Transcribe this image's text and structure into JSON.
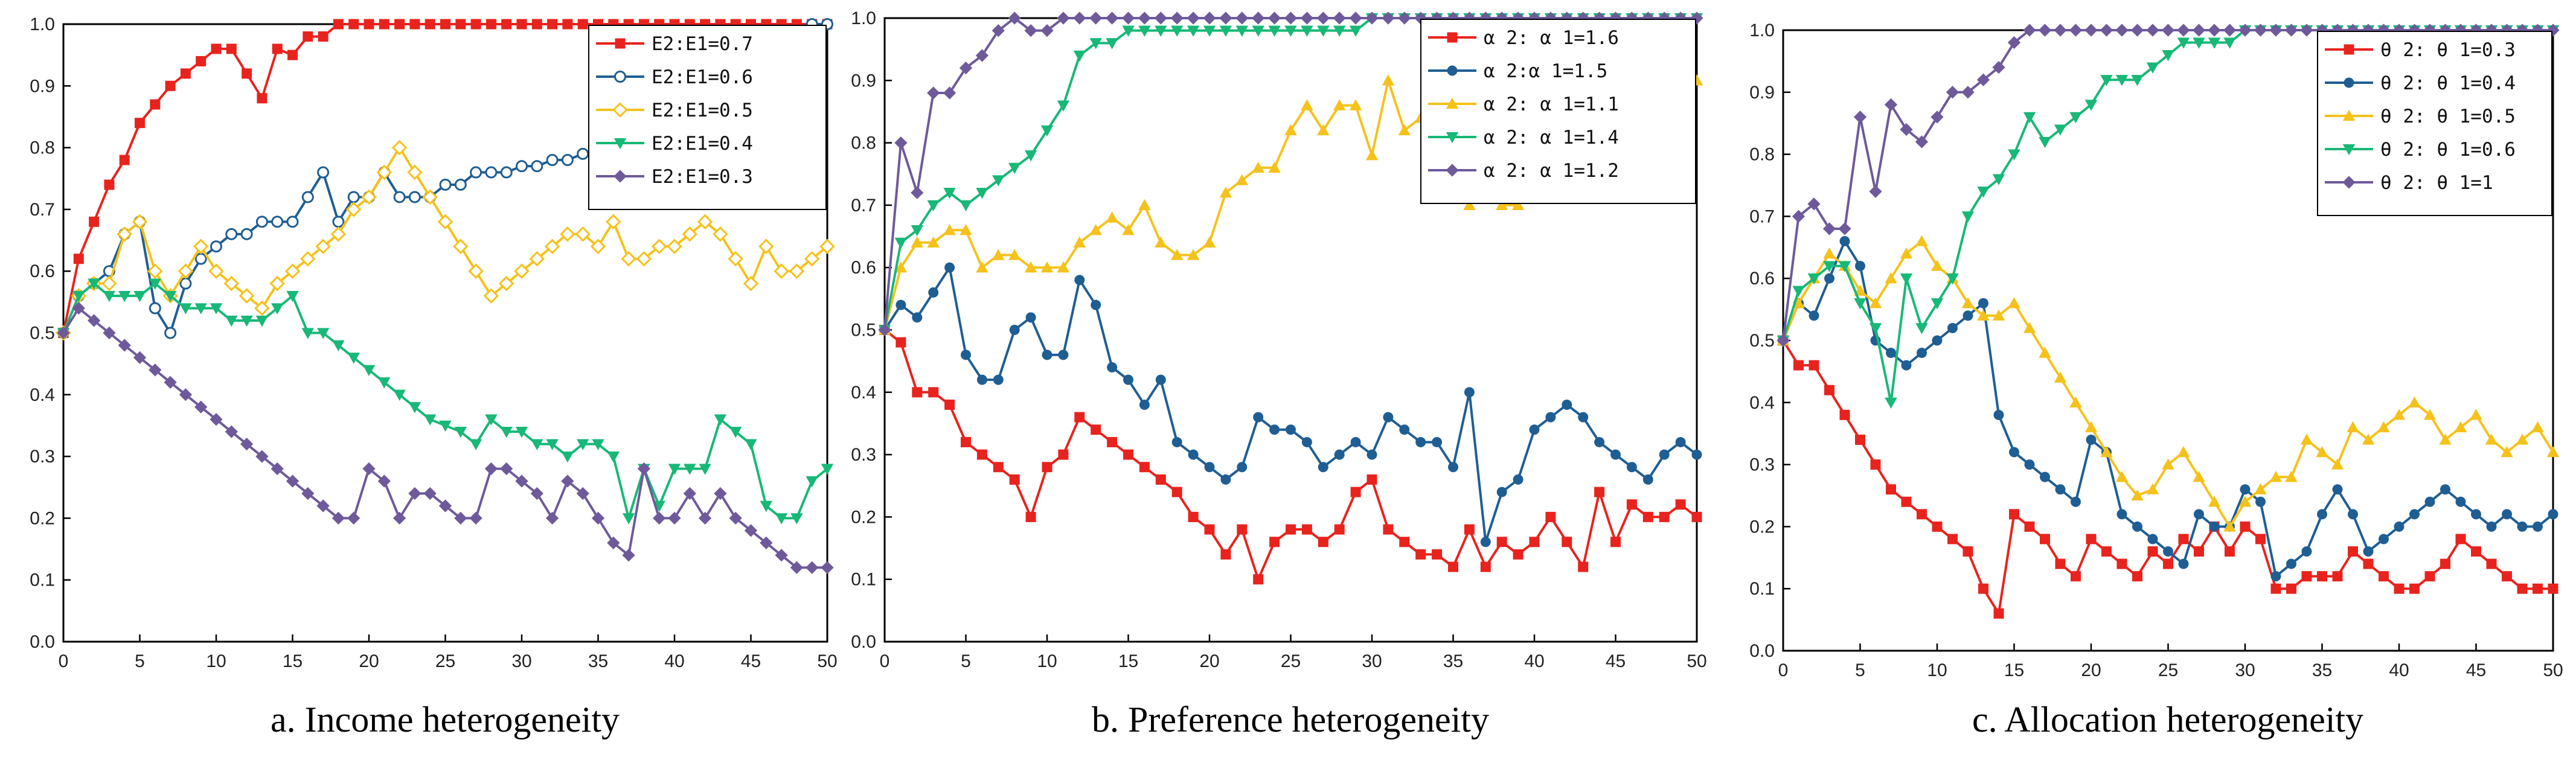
{
  "chart_data": [
    {
      "type": "line",
      "caption": "a.  Income heterogeneity",
      "xlim": [
        0,
        50
      ],
      "ylim": [
        0,
        1
      ],
      "xticks": [
        "0",
        "5",
        "10",
        "15",
        "20",
        "25",
        "30",
        "35",
        "40",
        "45",
        "50"
      ],
      "yticks": [
        "0.0",
        "0.1",
        "0.2",
        "0.3",
        "0.4",
        "0.5",
        "0.6",
        "0.7",
        "0.8",
        "0.9",
        "1.0"
      ],
      "grid": false,
      "legend_position": "top-right",
      "series": [
        {
          "name": "E2:E1=0.7",
          "color": "#e8231e",
          "marker": "square",
          "values": [
            0.5,
            0.62,
            0.68,
            0.74,
            0.78,
            0.84,
            0.87,
            0.9,
            0.92,
            0.94,
            0.96,
            0.96,
            0.92,
            0.88,
            0.96,
            0.95,
            0.98,
            0.98,
            1,
            1,
            1,
            1,
            1,
            1,
            1,
            1,
            1,
            1,
            1,
            1,
            1,
            1,
            1,
            1,
            1,
            1,
            1,
            1,
            1,
            1,
            1,
            1,
            1,
            1,
            1,
            1,
            1,
            1,
            1,
            1,
            1
          ]
        },
        {
          "name": "E2:E1=0.6",
          "color": "#1f5e93",
          "marker": "circle-open",
          "values": [
            0.5,
            0.56,
            0.58,
            0.6,
            0.66,
            0.68,
            0.54,
            0.5,
            0.58,
            0.62,
            0.64,
            0.66,
            0.66,
            0.68,
            0.68,
            0.68,
            0.72,
            0.76,
            0.68,
            0.72,
            0.72,
            0.76,
            0.72,
            0.72,
            0.72,
            0.74,
            0.74,
            0.76,
            0.76,
            0.76,
            0.77,
            0.77,
            0.78,
            0.78,
            0.79,
            0.8,
            0.8,
            0.76,
            0.76,
            0.82,
            0.82,
            0.82,
            0.84,
            0.84,
            0.84,
            0.86,
            0.88,
            0.9,
            0.96,
            1,
            1
          ]
        },
        {
          "name": "E2:E1=0.5",
          "color": "#f5c21b",
          "marker": "diamond-open",
          "values": [
            0.5,
            0.56,
            0.58,
            0.58,
            0.66,
            0.68,
            0.6,
            0.56,
            0.6,
            0.64,
            0.6,
            0.58,
            0.56,
            0.54,
            0.58,
            0.6,
            0.62,
            0.64,
            0.66,
            0.7,
            0.72,
            0.76,
            0.8,
            0.76,
            0.72,
            0.68,
            0.64,
            0.6,
            0.56,
            0.58,
            0.6,
            0.62,
            0.64,
            0.66,
            0.66,
            0.64,
            0.68,
            0.62,
            0.62,
            0.64,
            0.64,
            0.66,
            0.68,
            0.66,
            0.62,
            0.58,
            0.64,
            0.6,
            0.6,
            0.62,
            0.64
          ]
        },
        {
          "name": "E2:E1=0.4",
          "color": "#18b877",
          "marker": "triangle-down",
          "values": [
            0.5,
            0.56,
            0.58,
            0.56,
            0.56,
            0.56,
            0.58,
            0.56,
            0.54,
            0.54,
            0.54,
            0.52,
            0.52,
            0.52,
            0.54,
            0.56,
            0.5,
            0.5,
            0.48,
            0.46,
            0.44,
            0.42,
            0.4,
            0.38,
            0.36,
            0.35,
            0.34,
            0.32,
            0.36,
            0.34,
            0.34,
            0.32,
            0.32,
            0.3,
            0.32,
            0.32,
            0.3,
            0.2,
            0.28,
            0.22,
            0.28,
            0.28,
            0.28,
            0.36,
            0.34,
            0.32,
            0.22,
            0.2,
            0.2,
            0.26,
            0.28
          ]
        },
        {
          "name": "E2:E1=0.3",
          "color": "#6e5a9b",
          "marker": "diamond",
          "values": [
            0.5,
            0.54,
            0.52,
            0.5,
            0.48,
            0.46,
            0.44,
            0.42,
            0.4,
            0.38,
            0.36,
            0.34,
            0.32,
            0.3,
            0.28,
            0.26,
            0.24,
            0.22,
            0.2,
            0.2,
            0.28,
            0.26,
            0.2,
            0.24,
            0.24,
            0.22,
            0.2,
            0.2,
            0.28,
            0.28,
            0.26,
            0.24,
            0.2,
            0.26,
            0.24,
            0.2,
            0.16,
            0.14,
            0.28,
            0.2,
            0.2,
            0.24,
            0.2,
            0.24,
            0.2,
            0.18,
            0.16,
            0.14,
            0.12,
            0.12,
            0.12
          ]
        }
      ]
    },
    {
      "type": "line",
      "caption": "b.  Preference heterogeneity",
      "xlim": [
        0,
        50
      ],
      "ylim": [
        0,
        1
      ],
      "xticks": [
        "0",
        "5",
        "10",
        "15",
        "20",
        "25",
        "30",
        "35",
        "40",
        "45",
        "50"
      ],
      "yticks": [
        "0.0",
        "0.1",
        "0.2",
        "0.3",
        "0.4",
        "0.5",
        "0.6",
        "0.7",
        "0.8",
        "0.9",
        "1.0"
      ],
      "grid": false,
      "legend_position": "top-right",
      "series": [
        {
          "name": "α 2: α 1=1.6",
          "color": "#e8231e",
          "marker": "square",
          "values": [
            0.5,
            0.48,
            0.4,
            0.4,
            0.38,
            0.32,
            0.3,
            0.28,
            0.26,
            0.2,
            0.28,
            0.3,
            0.36,
            0.34,
            0.32,
            0.3,
            0.28,
            0.26,
            0.24,
            0.2,
            0.18,
            0.14,
            0.18,
            0.1,
            0.16,
            0.18,
            0.18,
            0.16,
            0.18,
            0.24,
            0.26,
            0.18,
            0.16,
            0.14,
            0.14,
            0.12,
            0.18,
            0.12,
            0.16,
            0.14,
            0.16,
            0.2,
            0.16,
            0.12,
            0.24,
            0.16,
            0.22,
            0.2,
            0.2,
            0.22,
            0.2
          ]
        },
        {
          "name": "α 2:α 1=1.5",
          "color": "#1f5e93",
          "marker": "circle",
          "values": [
            0.5,
            0.54,
            0.52,
            0.56,
            0.6,
            0.46,
            0.42,
            0.42,
            0.5,
            0.52,
            0.46,
            0.46,
            0.58,
            0.54,
            0.44,
            0.42,
            0.38,
            0.42,
            0.32,
            0.3,
            0.28,
            0.26,
            0.28,
            0.36,
            0.34,
            0.34,
            0.32,
            0.28,
            0.3,
            0.32,
            0.3,
            0.36,
            0.34,
            0.32,
            0.32,
            0.28,
            0.4,
            0.16,
            0.24,
            0.26,
            0.34,
            0.36,
            0.38,
            0.36,
            0.32,
            0.3,
            0.28,
            0.26,
            0.3,
            0.32,
            0.3
          ]
        },
        {
          "name": "α 2: α 1=1.1",
          "color": "#f5c21b",
          "marker": "triangle-up",
          "values": [
            0.5,
            0.6,
            0.64,
            0.64,
            0.66,
            0.66,
            0.6,
            0.62,
            0.62,
            0.6,
            0.6,
            0.6,
            0.64,
            0.66,
            0.68,
            0.66,
            0.7,
            0.64,
            0.62,
            0.62,
            0.64,
            0.72,
            0.74,
            0.76,
            0.76,
            0.82,
            0.86,
            0.82,
            0.86,
            0.86,
            0.78,
            0.9,
            0.82,
            0.84,
            0.76,
            0.72,
            0.7,
            0.72,
            0.7,
            0.7,
            0.74,
            0.76,
            0.78,
            0.76,
            0.8,
            0.82,
            0.84,
            0.86,
            0.9,
            0.9,
            0.9
          ]
        },
        {
          "name": "α 2: α 1=1.4",
          "color": "#18b877",
          "marker": "triangle-down",
          "values": [
            0.5,
            0.64,
            0.66,
            0.7,
            0.72,
            0.7,
            0.72,
            0.74,
            0.76,
            0.78,
            0.82,
            0.86,
            0.94,
            0.96,
            0.96,
            0.98,
            0.98,
            0.98,
            0.98,
            0.98,
            0.98,
            0.98,
            0.98,
            0.98,
            0.98,
            0.98,
            0.98,
            0.98,
            0.98,
            0.98,
            1,
            1,
            1,
            1,
            1,
            1,
            1,
            1,
            1,
            1,
            1,
            1,
            1,
            1,
            1,
            1,
            1,
            1,
            1,
            1,
            1
          ]
        },
        {
          "name": "α 2: α 1=1.2",
          "color": "#6e5a9b",
          "marker": "diamond",
          "values": [
            0.5,
            0.8,
            0.72,
            0.88,
            0.88,
            0.92,
            0.94,
            0.98,
            1,
            0.98,
            0.98,
            1,
            1,
            1,
            1,
            1,
            1,
            1,
            1,
            1,
            1,
            1,
            1,
            1,
            1,
            1,
            1,
            1,
            1,
            1,
            1,
            1,
            1,
            1,
            1,
            1,
            1,
            1,
            1,
            1,
            1,
            1,
            1,
            1,
            1,
            1,
            1,
            1,
            1,
            1,
            1
          ]
        }
      ]
    },
    {
      "type": "line",
      "caption": "c.  Allocation heterogeneity",
      "xlim": [
        0,
        50
      ],
      "ylim": [
        0,
        1
      ],
      "xticks": [
        "0",
        "5",
        "10",
        "15",
        "20",
        "25",
        "30",
        "35",
        "40",
        "45",
        "50"
      ],
      "yticks": [
        "0.0",
        "0.1",
        "0.2",
        "0.3",
        "0.4",
        "0.5",
        "0.6",
        "0.7",
        "0.8",
        "0.9",
        "1.0"
      ],
      "grid": false,
      "legend_position": "top-right",
      "series": [
        {
          "name": "θ 2: θ 1=0.3",
          "color": "#e8231e",
          "marker": "square",
          "values": [
            0.5,
            0.46,
            0.46,
            0.42,
            0.38,
            0.34,
            0.3,
            0.26,
            0.24,
            0.22,
            0.2,
            0.18,
            0.16,
            0.1,
            0.06,
            0.22,
            0.2,
            0.18,
            0.14,
            0.12,
            0.18,
            0.16,
            0.14,
            0.12,
            0.16,
            0.14,
            0.18,
            0.16,
            0.2,
            0.16,
            0.2,
            0.18,
            0.1,
            0.1,
            0.12,
            0.12,
            0.12,
            0.16,
            0.14,
            0.12,
            0.1,
            0.1,
            0.12,
            0.14,
            0.18,
            0.16,
            0.14,
            0.12,
            0.1,
            0.1,
            0.1
          ]
        },
        {
          "name": "θ 2: θ 1=0.4",
          "color": "#1f5e93",
          "marker": "circle",
          "values": [
            0.5,
            0.56,
            0.54,
            0.6,
            0.66,
            0.62,
            0.5,
            0.48,
            0.46,
            0.48,
            0.5,
            0.52,
            0.54,
            0.56,
            0.38,
            0.32,
            0.3,
            0.28,
            0.26,
            0.24,
            0.34,
            0.32,
            0.22,
            0.2,
            0.18,
            0.16,
            0.14,
            0.22,
            0.2,
            0.2,
            0.26,
            0.24,
            0.12,
            0.14,
            0.16,
            0.22,
            0.26,
            0.22,
            0.16,
            0.18,
            0.2,
            0.22,
            0.24,
            0.26,
            0.24,
            0.22,
            0.2,
            0.22,
            0.2,
            0.2,
            0.22
          ]
        },
        {
          "name": "θ 2: θ 1=0.5",
          "color": "#f5c21b",
          "marker": "triangle-up",
          "values": [
            0.5,
            0.56,
            0.6,
            0.64,
            0.62,
            0.58,
            0.56,
            0.6,
            0.64,
            0.66,
            0.62,
            0.6,
            0.56,
            0.54,
            0.54,
            0.56,
            0.52,
            0.48,
            0.44,
            0.4,
            0.36,
            0.32,
            0.28,
            0.25,
            0.26,
            0.3,
            0.32,
            0.28,
            0.24,
            0.2,
            0.24,
            0.26,
            0.28,
            0.28,
            0.34,
            0.32,
            0.3,
            0.36,
            0.34,
            0.36,
            0.38,
            0.4,
            0.38,
            0.34,
            0.36,
            0.38,
            0.34,
            0.32,
            0.34,
            0.36,
            0.32
          ]
        },
        {
          "name": "θ 2: θ 1=0.6",
          "color": "#18b877",
          "marker": "triangle-down",
          "values": [
            0.5,
            0.58,
            0.6,
            0.62,
            0.62,
            0.56,
            0.52,
            0.4,
            0.6,
            0.52,
            0.56,
            0.6,
            0.7,
            0.74,
            0.76,
            0.8,
            0.86,
            0.82,
            0.84,
            0.86,
            0.88,
            0.92,
            0.92,
            0.92,
            0.94,
            0.96,
            0.98,
            0.98,
            0.98,
            0.98,
            1,
            1,
            1,
            1,
            1,
            1,
            1,
            1,
            1,
            1,
            1,
            1,
            1,
            1,
            1,
            1,
            1,
            1,
            1,
            1,
            1
          ]
        },
        {
          "name": "θ 2: θ 1=1",
          "color": "#6e5a9b",
          "marker": "diamond",
          "values": [
            0.5,
            0.7,
            0.72,
            0.68,
            0.68,
            0.86,
            0.74,
            0.88,
            0.84,
            0.82,
            0.86,
            0.9,
            0.9,
            0.92,
            0.94,
            0.98,
            1,
            1,
            1,
            1,
            1,
            1,
            1,
            1,
            1,
            1,
            1,
            1,
            1,
            1,
            1,
            1,
            1,
            1,
            1,
            1,
            1,
            1,
            1,
            1,
            1,
            1,
            1,
            1,
            1,
            1,
            1,
            1,
            1,
            1,
            1
          ]
        }
      ]
    }
  ]
}
